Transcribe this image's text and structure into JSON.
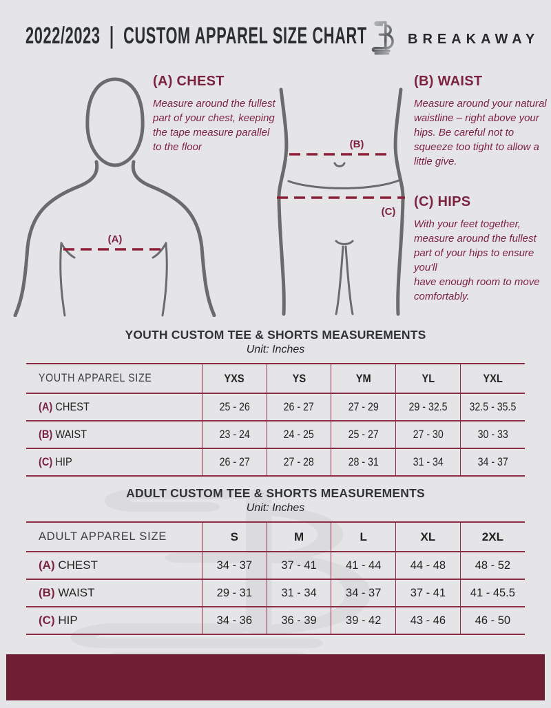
{
  "header": {
    "title": "2022/2023  |  CUSTOM APPAREL SIZE CHART",
    "brand": "BREAKAWAY"
  },
  "instructions": [
    {
      "id": "A",
      "heading": "(A) CHEST",
      "body": "Measure around the fullest part of your chest, keeping the tape measure parallel to the floor"
    },
    {
      "id": "B",
      "heading": "(B) WAIST",
      "body": "Measure around your natural waistline – right above your hips. Be careful not to squeeze too tight to allow a little give."
    },
    {
      "id": "C",
      "heading": "(C) HIPS",
      "body": "With your feet together, measure around the fullest part of your hips to ensure you'll\nhave enough room to move comfortably."
    }
  ],
  "figures": {
    "chest_label": "(A)",
    "waist_label": "(B)",
    "hips_label": "(C)"
  },
  "youth": {
    "title": "YOUTH CUSTOM TEE & SHORTS MEASUREMENTS",
    "unit": "Unit: Inches",
    "table": {
      "header": [
        "YOUTH APPAREL SIZE",
        "YXS",
        "YS",
        "YM",
        "YL",
        "YXL"
      ],
      "rows": [
        {
          "prefix": "(A)",
          "label": "CHEST",
          "values": [
            "25 - 26",
            "26 - 27",
            "27 - 29",
            "29 - 32.5",
            "32.5 - 35.5"
          ]
        },
        {
          "prefix": "(B)",
          "label": "WAIST",
          "values": [
            "23 - 24",
            "24 - 25",
            "25 - 27",
            "27 - 30",
            "30 - 33"
          ]
        },
        {
          "prefix": "(C)",
          "label": "HIP",
          "values": [
            "26 - 27",
            "27 - 28",
            "28 - 31",
            "31 - 34",
            "34 - 37"
          ]
        }
      ]
    }
  },
  "adult": {
    "title": "ADULT CUSTOM TEE & SHORTS MEASUREMENTS",
    "unit": "Unit: Inches",
    "table": {
      "header": [
        "ADULT APPAREL SIZE",
        "S",
        "M",
        "L",
        "XL",
        "2XL"
      ],
      "rows": [
        {
          "prefix": "(A)",
          "label": "CHEST",
          "values": [
            "34 - 37",
            "37 - 41",
            "41 - 44",
            "44 - 48",
            "48 - 52"
          ]
        },
        {
          "prefix": "(B)",
          "label": "WAIST",
          "values": [
            "29 - 31",
            "31 - 34",
            "34 - 37",
            "37 - 41",
            "41 - 45.5"
          ]
        },
        {
          "prefix": "(C)",
          "label": "HIP",
          "values": [
            "34 - 36",
            "36 - 39",
            "39 - 42",
            "43 - 46",
            "46 - 50"
          ]
        }
      ]
    }
  },
  "colors": {
    "background": "#e5e5e7",
    "accent_maroon": "#7b2241",
    "dashed_line": "#8e1f38",
    "table_line": "#8d2c44",
    "footer_bar": "#6f1e34",
    "figure_stroke": "#696b6d",
    "text_dark": "#26282c"
  }
}
